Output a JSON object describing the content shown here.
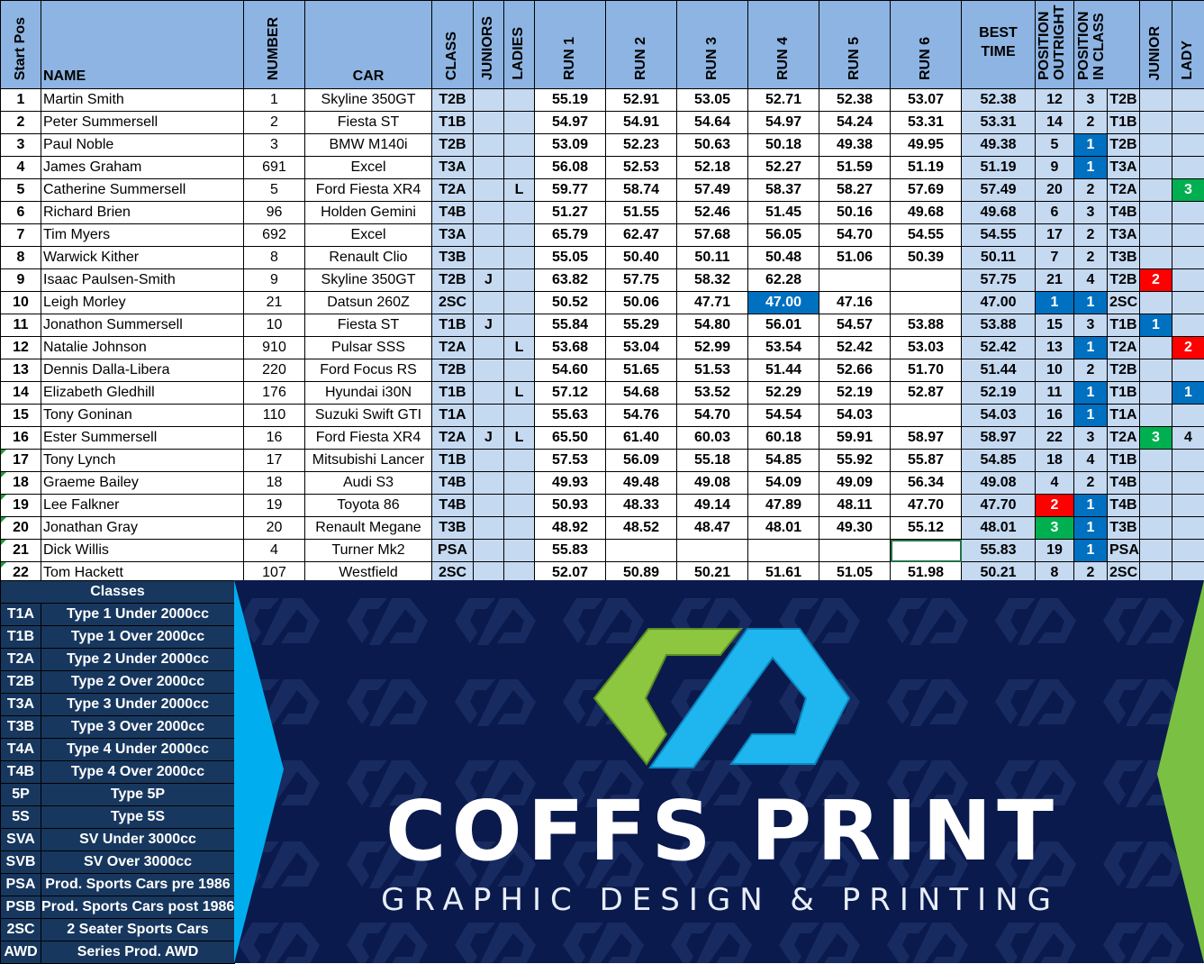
{
  "colors": {
    "header": "#8db4e2",
    "light": "#c5d9f1",
    "blue": "#0070c0",
    "red": "#ff0000",
    "green": "#00b050",
    "navy": "#0b1a4d",
    "classes_bg": "#17375e"
  },
  "headers": {
    "start_pos": "Start Pos",
    "name": "NAME",
    "number": "NUMBER",
    "car": "CAR",
    "class": "CLASS",
    "juniors": "JUNIORS",
    "ladies": "LADIES",
    "run1": "RUN 1",
    "run2": "RUN 2",
    "run3": "RUN 3",
    "run4": "RUN 4",
    "run5": "RUN 5",
    "run6": "RUN 6",
    "best": "BEST TIME",
    "pos_outright": "POSITION OUTRIGHT",
    "pos_class": "POSITION IN CLASS",
    "junior": "JUNIOR",
    "lady": "LADY"
  },
  "rows": [
    {
      "pos": "1",
      "name": "Martin Smith",
      "num": "1",
      "car": "Skyline 350GT",
      "cls": "T2B",
      "jr": "",
      "ld": "",
      "runs": [
        "55.19",
        "52.91",
        "53.05",
        "52.71",
        "52.38",
        "53.07"
      ],
      "best": "52.38",
      "out": "12",
      "pc": "3",
      "pcls": "T2B",
      "junior": "",
      "lady": "",
      "hl": {}
    },
    {
      "pos": "2",
      "name": "Peter Summersell",
      "num": "2",
      "car": "Fiesta ST",
      "cls": "T1B",
      "jr": "",
      "ld": "",
      "runs": [
        "54.97",
        "54.91",
        "54.64",
        "54.97",
        "54.24",
        "53.31"
      ],
      "best": "53.31",
      "out": "14",
      "pc": "2",
      "pcls": "T1B",
      "junior": "",
      "lady": "",
      "hl": {}
    },
    {
      "pos": "3",
      "name": "Paul Noble",
      "num": "3",
      "car": "BMW M140i",
      "cls": "T2B",
      "jr": "",
      "ld": "",
      "runs": [
        "53.09",
        "52.23",
        "50.63",
        "50.18",
        "49.38",
        "49.95"
      ],
      "best": "49.38",
      "out": "5",
      "pc": "1",
      "pcls": "T2B",
      "junior": "",
      "lady": "",
      "hl": {
        "pc": "blue"
      }
    },
    {
      "pos": "4",
      "name": "James Graham",
      "num": "691",
      "car": "Excel",
      "cls": "T3A",
      "jr": "",
      "ld": "",
      "runs": [
        "56.08",
        "52.53",
        "52.18",
        "52.27",
        "51.59",
        "51.19"
      ],
      "best": "51.19",
      "out": "9",
      "pc": "1",
      "pcls": "T3A",
      "junior": "",
      "lady": "",
      "hl": {
        "pc": "blue"
      }
    },
    {
      "pos": "5",
      "name": "Catherine Summersell",
      "num": "5",
      "car": "Ford Fiesta XR4",
      "cls": "T2A",
      "jr": "",
      "ld": "L",
      "runs": [
        "59.77",
        "58.74",
        "57.49",
        "58.37",
        "58.27",
        "57.69"
      ],
      "best": "57.49",
      "out": "20",
      "pc": "2",
      "pcls": "T2A",
      "junior": "",
      "lady": "3",
      "hl": {
        "lady": "green"
      }
    },
    {
      "pos": "6",
      "name": "Richard Brien",
      "num": "96",
      "car": "Holden Gemini",
      "cls": "T4B",
      "jr": "",
      "ld": "",
      "runs": [
        "51.27",
        "51.55",
        "52.46",
        "51.45",
        "50.16",
        "49.68"
      ],
      "best": "49.68",
      "out": "6",
      "pc": "3",
      "pcls": "T4B",
      "junior": "",
      "lady": "",
      "hl": {}
    },
    {
      "pos": "7",
      "name": "Tim Myers",
      "num": "692",
      "car": "Excel",
      "cls": "T3A",
      "jr": "",
      "ld": "",
      "runs": [
        "65.79",
        "62.47",
        "57.68",
        "56.05",
        "54.70",
        "54.55"
      ],
      "best": "54.55",
      "out": "17",
      "pc": "2",
      "pcls": "T3A",
      "junior": "",
      "lady": "",
      "hl": {}
    },
    {
      "pos": "8",
      "name": "Warwick Kither",
      "num": "8",
      "car": "Renault Clio",
      "cls": "T3B",
      "jr": "",
      "ld": "",
      "runs": [
        "55.05",
        "50.40",
        "50.11",
        "50.48",
        "51.06",
        "50.39"
      ],
      "best": "50.11",
      "out": "7",
      "pc": "2",
      "pcls": "T3B",
      "junior": "",
      "lady": "",
      "hl": {}
    },
    {
      "pos": "9",
      "name": "Isaac Paulsen-Smith",
      "num": "9",
      "car": "Skyline 350GT",
      "cls": "T2B",
      "jr": "J",
      "ld": "",
      "runs": [
        "63.82",
        "57.75",
        "58.32",
        "62.28",
        "",
        ""
      ],
      "best": "57.75",
      "out": "21",
      "pc": "4",
      "pcls": "T2B",
      "junior": "2",
      "lady": "",
      "hl": {
        "junior": "red"
      }
    },
    {
      "pos": "10",
      "name": "Leigh Morley",
      "num": "21",
      "car": "Datsun 260Z",
      "cls": "2SC",
      "jr": "",
      "ld": "",
      "runs": [
        "50.52",
        "50.06",
        "47.71",
        "47.00",
        "47.16",
        ""
      ],
      "best": "47.00",
      "out": "1",
      "pc": "1",
      "pcls": "2SC",
      "junior": "",
      "lady": "",
      "hl": {
        "run3": "blue",
        "out": "blue",
        "pc": "blue"
      }
    },
    {
      "pos": "11",
      "name": "Jonathon Summersell",
      "num": "10",
      "car": "Fiesta ST",
      "cls": "T1B",
      "jr": "J",
      "ld": "",
      "runs": [
        "55.84",
        "55.29",
        "54.80",
        "56.01",
        "54.57",
        "53.88"
      ],
      "best": "53.88",
      "out": "15",
      "pc": "3",
      "pcls": "T1B",
      "junior": "1",
      "lady": "",
      "hl": {
        "junior": "blue"
      }
    },
    {
      "pos": "12",
      "name": "Natalie Johnson",
      "num": "910",
      "car": "Pulsar SSS",
      "cls": "T2A",
      "jr": "",
      "ld": "L",
      "runs": [
        "53.68",
        "53.04",
        "52.99",
        "53.54",
        "52.42",
        "53.03"
      ],
      "best": "52.42",
      "out": "13",
      "pc": "1",
      "pcls": "T2A",
      "junior": "",
      "lady": "2",
      "hl": {
        "pc": "blue",
        "lady": "red"
      }
    },
    {
      "pos": "13",
      "name": "Dennis Dalla-Libera",
      "num": "220",
      "car": "Ford Focus RS",
      "cls": "T2B",
      "jr": "",
      "ld": "",
      "runs": [
        "54.60",
        "51.65",
        "51.53",
        "51.44",
        "52.66",
        "51.70"
      ],
      "best": "51.44",
      "out": "10",
      "pc": "2",
      "pcls": "T2B",
      "junior": "",
      "lady": "",
      "hl": {}
    },
    {
      "pos": "14",
      "name": "Elizabeth Gledhill",
      "num": "176",
      "car": "Hyundai i30N",
      "cls": "T1B",
      "jr": "",
      "ld": "L",
      "runs": [
        "57.12",
        "54.68",
        "53.52",
        "52.29",
        "52.19",
        "52.87"
      ],
      "best": "52.19",
      "out": "11",
      "pc": "1",
      "pcls": "T1B",
      "junior": "",
      "lady": "1",
      "hl": {
        "pc": "blue",
        "lady": "blue"
      }
    },
    {
      "pos": "15",
      "name": "Tony Goninan",
      "num": "110",
      "car": "Suzuki Swift GTI",
      "cls": "T1A",
      "jr": "",
      "ld": "",
      "runs": [
        "55.63",
        "54.76",
        "54.70",
        "54.54",
        "54.03",
        ""
      ],
      "best": "54.03",
      "out": "16",
      "pc": "1",
      "pcls": "T1A",
      "junior": "",
      "lady": "",
      "hl": {
        "pc": "blue"
      }
    },
    {
      "pos": "16",
      "name": "Ester Summersell",
      "num": "16",
      "car": "Ford Fiesta XR4",
      "cls": "T2A",
      "jr": "J",
      "ld": "L",
      "runs": [
        "65.50",
        "61.40",
        "60.03",
        "60.18",
        "59.91",
        "58.97"
      ],
      "best": "58.97",
      "out": "22",
      "pc": "3",
      "pcls": "T2A",
      "junior": "3",
      "lady": "4",
      "hl": {
        "junior": "green"
      }
    },
    {
      "pos": "17",
      "name": "Tony Lynch",
      "num": "17",
      "car": "Mitsubishi Lancer",
      "cls": "T1B",
      "jr": "",
      "ld": "",
      "runs": [
        "57.53",
        "56.09",
        "55.18",
        "54.85",
        "55.92",
        "55.87"
      ],
      "best": "54.85",
      "out": "18",
      "pc": "4",
      "pcls": "T1B",
      "junior": "",
      "lady": "",
      "hl": {}
    },
    {
      "pos": "18",
      "name": "Graeme Bailey",
      "num": "18",
      "car": "Audi S3",
      "cls": "T4B",
      "jr": "",
      "ld": "",
      "runs": [
        "49.93",
        "49.48",
        "49.08",
        "54.09",
        "49.09",
        "56.34"
      ],
      "best": "49.08",
      "out": "4",
      "pc": "2",
      "pcls": "T4B",
      "junior": "",
      "lady": "",
      "hl": {}
    },
    {
      "pos": "19",
      "name": "Lee Falkner",
      "num": "19",
      "car": "Toyota 86",
      "cls": "T4B",
      "jr": "",
      "ld": "",
      "runs": [
        "50.93",
        "48.33",
        "49.14",
        "47.89",
        "48.11",
        "47.70"
      ],
      "best": "47.70",
      "out": "2",
      "pc": "1",
      "pcls": "T4B",
      "junior": "",
      "lady": "",
      "hl": {
        "out": "red",
        "pc": "blue"
      }
    },
    {
      "pos": "20",
      "name": "Jonathan Gray",
      "num": "20",
      "car": "Renault Megane",
      "cls": "T3B",
      "jr": "",
      "ld": "",
      "runs": [
        "48.92",
        "48.52",
        "48.47",
        "48.01",
        "49.30",
        "55.12"
      ],
      "best": "48.01",
      "out": "3",
      "pc": "1",
      "pcls": "T3B",
      "junior": "",
      "lady": "",
      "hl": {
        "out": "green",
        "pc": "blue"
      }
    },
    {
      "pos": "21",
      "name": "Dick Willis",
      "num": "4",
      "car": "Turner Mk2",
      "cls": "PSA",
      "jr": "",
      "ld": "",
      "runs": [
        "55.83",
        "",
        "",
        "",
        "",
        ""
      ],
      "best": "55.83",
      "out": "19",
      "pc": "1",
      "pcls": "PSA",
      "junior": "",
      "lady": "",
      "hl": {
        "pc": "blue"
      }
    },
    {
      "pos": "22",
      "name": "Tom Hackett",
      "num": "107",
      "car": "Westfield",
      "cls": "2SC",
      "jr": "",
      "ld": "",
      "runs": [
        "52.07",
        "50.89",
        "50.21",
        "51.61",
        "51.05",
        "51.98"
      ],
      "best": "50.21",
      "out": "8",
      "pc": "2",
      "pcls": "2SC",
      "junior": "",
      "lady": "",
      "hl": {}
    }
  ],
  "classes": {
    "title": "Classes",
    "items": [
      {
        "code": "T1A",
        "desc": "Type 1 Under 2000cc"
      },
      {
        "code": "T1B",
        "desc": "Type 1 Over 2000cc"
      },
      {
        "code": "T2A",
        "desc": "Type 2 Under 2000cc"
      },
      {
        "code": "T2B",
        "desc": "Type 2 Over 2000cc"
      },
      {
        "code": "T3A",
        "desc": "Type 3 Under 2000cc"
      },
      {
        "code": "T3B",
        "desc": "Type 3 Over 2000cc"
      },
      {
        "code": "T4A",
        "desc": "Type 4 Under 2000cc"
      },
      {
        "code": "T4B",
        "desc": "Type 4 Over 2000cc"
      },
      {
        "code": "5P",
        "desc": "Type 5P"
      },
      {
        "code": "5S",
        "desc": "Type 5S"
      },
      {
        "code": "SVA",
        "desc": "SV Under 3000cc"
      },
      {
        "code": "SVB",
        "desc": "SV Over 3000cc"
      },
      {
        "code": "PSA",
        "desc": "Prod. Sports Cars pre 1986"
      },
      {
        "code": "PSB",
        "desc": "Prod. Sports Cars post 1986"
      },
      {
        "code": "2SC",
        "desc": "2 Seater Sports Cars"
      },
      {
        "code": "AWD",
        "desc": "Series Prod. AWD"
      }
    ]
  },
  "banner": {
    "brand": "COFFS PRINT",
    "tagline": "GRAPHIC DESIGN & PRINTING"
  }
}
